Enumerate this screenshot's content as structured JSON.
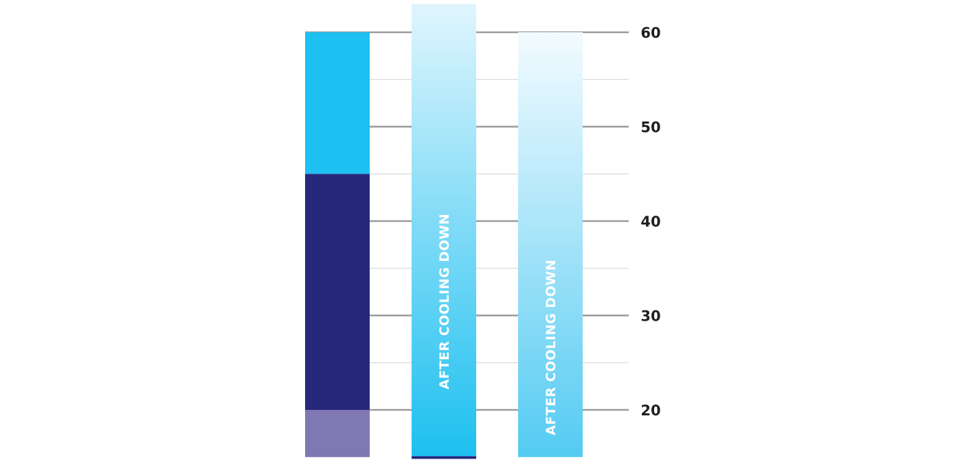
{
  "chart_data": {
    "type": "bar",
    "stacked": true,
    "y_axis_position": "right",
    "ylim": [
      15,
      63
    ],
    "y_ticks": [
      20,
      30,
      40,
      50,
      60
    ],
    "y_tick_labels": [
      "20",
      "30",
      "40",
      "50",
      "60"
    ],
    "minor_grid_values": [
      25,
      35,
      45,
      55
    ],
    "grid": true,
    "bars": [
      {
        "segments": [
          {
            "from": 15,
            "to": 20,
            "color": "#7f78b2"
          },
          {
            "from": 20,
            "to": 45,
            "color": "#27277c"
          },
          {
            "from": 45,
            "to": 60,
            "color": "#1dc0f0"
          }
        ],
        "label": ""
      },
      {
        "segments": [
          {
            "from": 15,
            "to": 15.1,
            "color": "#27277c"
          },
          {
            "from": 15.1,
            "to": 63,
            "gradient_from": "#1dc0f0",
            "gradient_to": "#e0f5fd"
          }
        ],
        "label": "AFTER COOLING DOWN"
      },
      {
        "segments": [
          {
            "from": 15,
            "to": 60,
            "gradient_from": "#54cbf2",
            "gradient_to": "#f3fbff"
          }
        ],
        "label": "AFTER COOLING DOWN"
      }
    ]
  }
}
